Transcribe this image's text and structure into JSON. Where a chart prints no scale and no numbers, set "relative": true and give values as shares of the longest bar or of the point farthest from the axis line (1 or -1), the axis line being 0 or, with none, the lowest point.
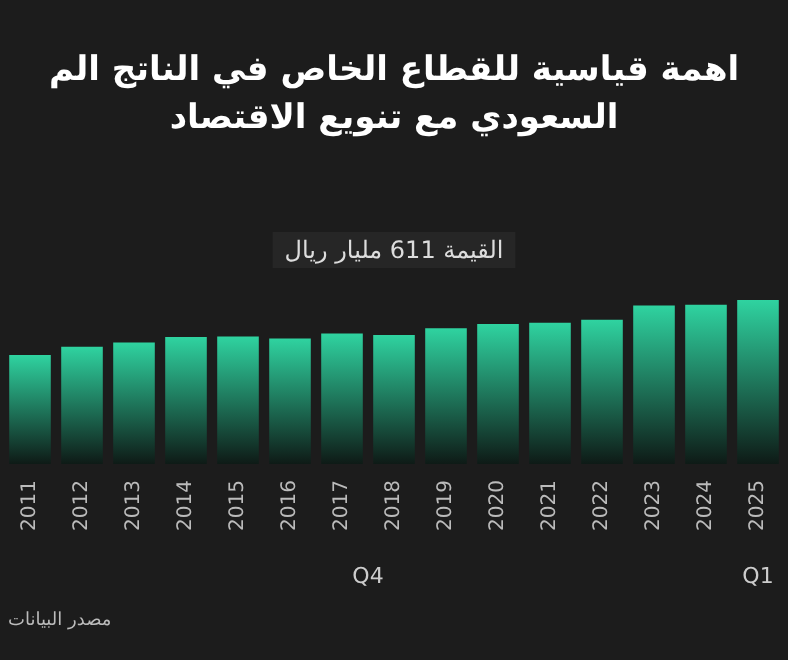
{
  "chart_data": {
    "type": "bar",
    "title": "اهمة قياسية للقطاع الخاص في الناتج الم\nالسعودي مع تنويع الاقتصاد",
    "subtitle": "القيمة 611 مليار ريال",
    "categories": [
      "2011",
      "2012",
      "2013",
      "2014",
      "2015",
      "2016",
      "2017",
      "2018",
      "2019",
      "2020",
      "2021",
      "2022",
      "2023",
      "2024",
      "2025"
    ],
    "values": [
      0.665,
      0.715,
      0.741,
      0.774,
      0.778,
      0.766,
      0.795,
      0.787,
      0.828,
      0.854,
      0.862,
      0.879,
      0.967,
      0.971,
      1
    ],
    "color": "#2fd3a0",
    "relative": true,
    "annotations": [
      "Q4",
      "Q1",
      "مصدر البيانات"
    ]
  }
}
